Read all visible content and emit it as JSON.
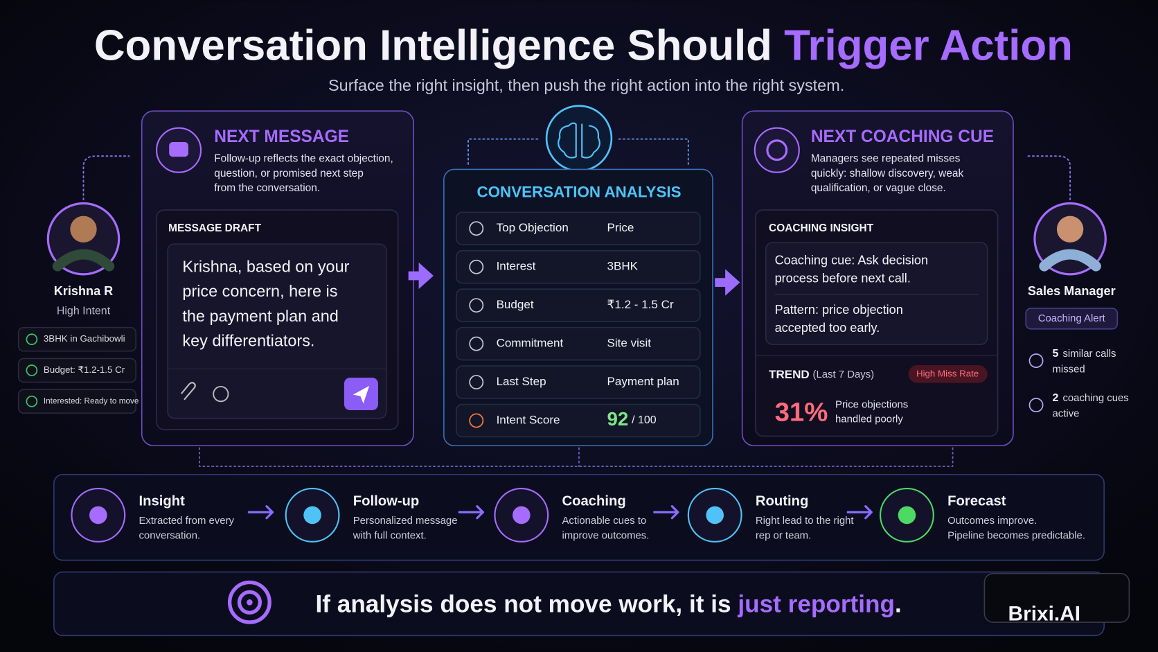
{
  "header": {
    "title_main": "Conversation Intelligence Should",
    "title_accent": "Trigger Action",
    "subtitle": "Surface the right insight, then push the right action into the right system."
  },
  "left_person": {
    "name": "Krishna R",
    "status": "High Intent",
    "tags": [
      "3BHK in Gachibowli",
      "Budget: ₹1.2-1.5 Cr",
      "Interested: Ready to move"
    ]
  },
  "next_message": {
    "title": "NEXT MESSAGE",
    "description": [
      "Follow-up reflects the exact objection,",
      "question, or promised next step",
      "from the conversation."
    ],
    "draft_label": "MESSAGE DRAFT",
    "draft_lines": [
      "Krishna, based on your",
      "price concern, here is",
      "the payment plan and",
      "key differentiators."
    ]
  },
  "analysis": {
    "title": "CONVERSATION ANALYSIS",
    "rows": [
      {
        "label": "Top Objection",
        "value": "Price"
      },
      {
        "label": "Interest",
        "value": "3BHK"
      },
      {
        "label": "Budget",
        "value": "₹1.2 - 1.5 Cr"
      },
      {
        "label": "Commitment",
        "value": "Site visit"
      },
      {
        "label": "Last Step",
        "value": "Payment plan"
      },
      {
        "label": "Intent Score",
        "value": "92",
        "suffix": "/ 100"
      }
    ]
  },
  "coaching": {
    "title": "NEXT COACHING CUE",
    "description": [
      "Managers see repeated misses",
      "quickly: shallow discovery, weak",
      "qualification, or vague close."
    ],
    "insight_label": "COACHING INSIGHT",
    "insights": [
      [
        "Coaching cue: Ask decision",
        "process before next call."
      ],
      [
        "Pattern: price objection",
        "accepted too early."
      ]
    ],
    "trend_label": "TREND",
    "trend_period": "(Last 7 Days)",
    "badge": "High Miss Rate",
    "trend_value": "31%",
    "trend_text": [
      "Price objections",
      "handled poorly"
    ]
  },
  "right_person": {
    "name": "Sales Manager",
    "badge": "Coaching Alert",
    "stats": [
      {
        "count": "5",
        "text": [
          "similar calls",
          "missed"
        ]
      },
      {
        "count": "2",
        "text": [
          "coaching cues",
          "active"
        ]
      }
    ]
  },
  "flow": [
    {
      "title": "Insight",
      "lines": [
        "Extracted from every",
        "conversation."
      ]
    },
    {
      "title": "Follow-up",
      "lines": [
        "Personalized message",
        "with full context."
      ]
    },
    {
      "title": "Coaching",
      "lines": [
        "Actionable cues to",
        "improve outcomes."
      ]
    },
    {
      "title": "Routing",
      "lines": [
        "Right lead to the right",
        "rep or team."
      ]
    },
    {
      "title": "Forecast",
      "lines": [
        "Outcomes improve.",
        "Pipeline becomes predictable."
      ]
    }
  ],
  "footer": {
    "text_main": "If analysis does not move work, it is",
    "text_accent": "just reporting",
    "text_end": ".",
    "brand": "Brixi.AI"
  }
}
